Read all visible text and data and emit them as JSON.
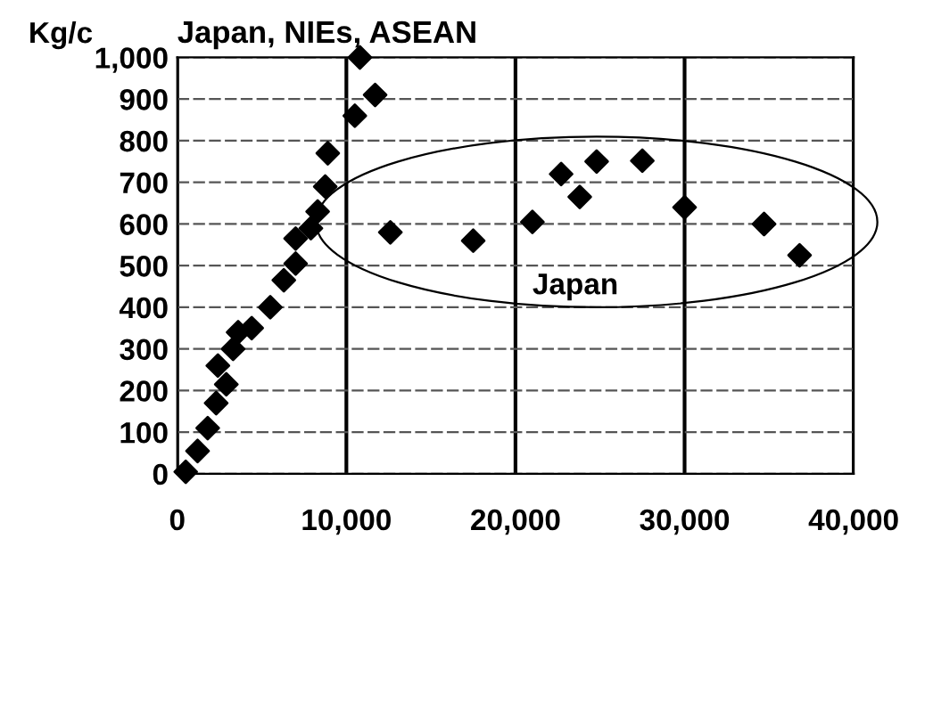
{
  "chart_data": {
    "type": "scatter",
    "title": "Japan, NIEs, ASEAN",
    "ylabel": "Kg/c",
    "annotations": [
      "Japan"
    ],
    "x": [
      500,
      1200,
      1800,
      2300,
      2900,
      2400,
      3300,
      3600,
      4400,
      5500,
      6300,
      7000,
      7000,
      7900,
      8300,
      8750,
      8900,
      10500,
      10800,
      11700,
      12600,
      17500,
      21000,
      22700,
      23800,
      24800,
      27500,
      30000,
      34700,
      36800
    ],
    "values": [
      5,
      55,
      110,
      170,
      215,
      260,
      300,
      340,
      350,
      400,
      465,
      505,
      565,
      590,
      630,
      690,
      770,
      860,
      1000,
      910,
      580,
      560,
      605,
      720,
      665,
      750,
      752,
      640,
      600,
      525
    ],
    "color": "#000000",
    "marker": "diamond",
    "xlim": [
      0,
      40000
    ],
    "xticks": [
      0,
      {
        "value": 10000,
        "label": "10,000"
      },
      {
        "value": 20000,
        "label": "20,000"
      },
      {
        "value": 30000,
        "label": "30,000"
      },
      {
        "value": 40000,
        "label": "40,000"
      }
    ],
    "ylim": [
      0,
      1000
    ],
    "yticks": [
      0,
      100,
      200,
      300,
      400,
      500,
      600,
      700,
      800,
      900,
      {
        "value": 1000,
        "label": "1,000"
      }
    ],
    "grid": true
  }
}
